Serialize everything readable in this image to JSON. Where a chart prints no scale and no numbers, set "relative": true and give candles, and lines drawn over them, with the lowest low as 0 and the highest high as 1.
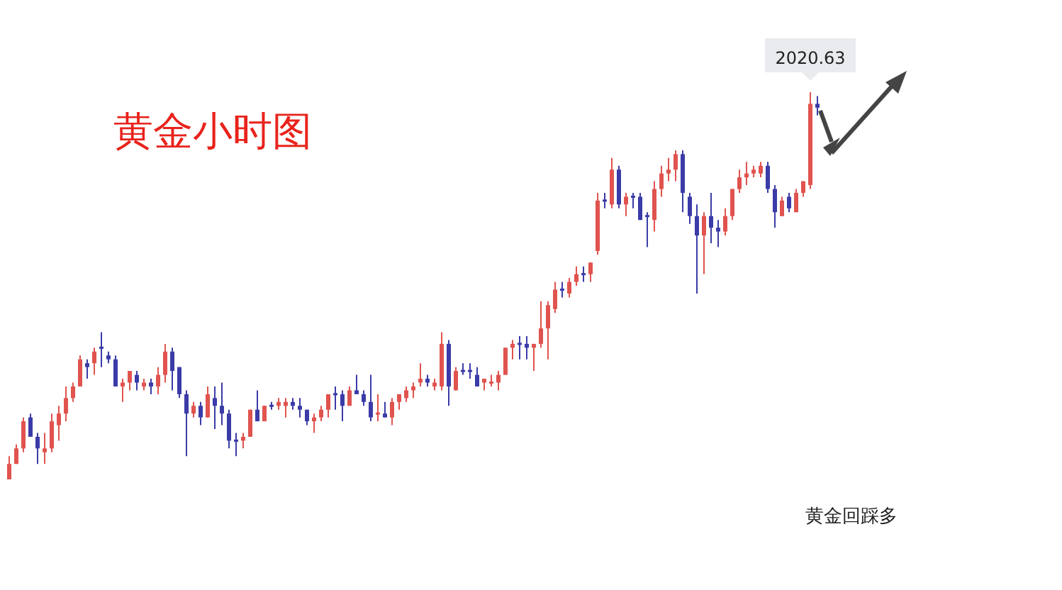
{
  "chart_data": {
    "type": "candlestick",
    "title": "黄金小时图",
    "relative": true,
    "annotations": [
      "2020.63",
      "黄金回踩多"
    ],
    "categories": [
      null,
      null,
      null,
      null,
      null,
      null,
      null,
      null,
      null,
      null,
      null,
      null,
      null,
      null,
      null,
      null,
      null,
      null,
      null,
      null,
      null,
      null,
      null,
      null,
      null,
      null,
      null,
      null,
      null,
      null,
      null,
      null,
      null,
      null,
      null,
      null,
      null,
      null,
      null,
      null,
      null,
      null,
      null,
      null,
      null,
      null,
      null,
      null,
      null,
      null,
      null,
      null,
      null,
      null,
      null,
      null,
      null,
      null,
      null,
      null,
      null,
      null,
      null,
      null,
      null,
      null,
      null,
      null,
      null,
      null,
      null,
      null,
      null,
      null,
      null,
      null,
      null,
      null,
      null,
      null,
      null,
      null,
      null,
      null,
      null,
      null,
      null,
      null,
      null,
      null,
      null,
      null,
      null,
      null,
      null,
      null,
      null,
      null,
      null,
      null,
      null,
      null,
      null,
      null,
      null,
      null,
      null,
      null,
      null,
      null,
      null,
      null,
      null,
      null,
      null
    ],
    "ohlc": [
      [
        0.0,
        0.06,
        0.0,
        0.04
      ],
      [
        0.04,
        0.09,
        0.04,
        0.08
      ],
      [
        0.08,
        0.16,
        0.07,
        0.15
      ],
      [
        0.16,
        0.17,
        0.11,
        0.11
      ],
      [
        0.11,
        0.12,
        0.04,
        0.08
      ],
      [
        0.07,
        0.12,
        0.04,
        0.08
      ],
      [
        0.08,
        0.17,
        0.07,
        0.15
      ],
      [
        0.14,
        0.19,
        0.1,
        0.17
      ],
      [
        0.17,
        0.24,
        0.15,
        0.21
      ],
      [
        0.21,
        0.25,
        0.2,
        0.24
      ],
      [
        0.24,
        0.32,
        0.24,
        0.31
      ],
      [
        0.3,
        0.31,
        0.26,
        0.29
      ],
      [
        0.3,
        0.34,
        0.27,
        0.33
      ],
      [
        0.34,
        0.38,
        0.29,
        0.34
      ],
      [
        0.32,
        0.33,
        0.3,
        0.31
      ],
      [
        0.31,
        0.32,
        0.24,
        0.24
      ],
      [
        0.24,
        0.26,
        0.2,
        0.25
      ],
      [
        0.25,
        0.28,
        0.23,
        0.28
      ],
      [
        0.27,
        0.28,
        0.23,
        0.25
      ],
      [
        0.24,
        0.26,
        0.23,
        0.25
      ],
      [
        0.25,
        0.26,
        0.22,
        0.24
      ],
      [
        0.24,
        0.29,
        0.22,
        0.27
      ],
      [
        0.27,
        0.35,
        0.25,
        0.33
      ],
      [
        0.33,
        0.34,
        0.23,
        0.28
      ],
      [
        0.29,
        0.29,
        0.21,
        0.22
      ],
      [
        0.22,
        0.23,
        0.06,
        0.17
      ],
      [
        0.17,
        0.2,
        0.16,
        0.19
      ],
      [
        0.19,
        0.2,
        0.14,
        0.16
      ],
      [
        0.16,
        0.24,
        0.16,
        0.22
      ],
      [
        0.21,
        0.24,
        0.13,
        0.19
      ],
      [
        0.19,
        0.25,
        0.14,
        0.17
      ],
      [
        0.17,
        0.18,
        0.08,
        0.1
      ],
      [
        0.1,
        0.12,
        0.06,
        0.1
      ],
      [
        0.1,
        0.12,
        0.08,
        0.11
      ],
      [
        0.11,
        0.18,
        0.11,
        0.18
      ],
      [
        0.18,
        0.23,
        0.15,
        0.15
      ],
      [
        0.15,
        0.19,
        0.15,
        0.19
      ],
      [
        0.19,
        0.2,
        0.18,
        0.19
      ],
      [
        0.19,
        0.21,
        0.18,
        0.2
      ],
      [
        0.19,
        0.21,
        0.16,
        0.2
      ],
      [
        0.2,
        0.21,
        0.18,
        0.19
      ],
      [
        0.19,
        0.21,
        0.16,
        0.18
      ],
      [
        0.18,
        0.18,
        0.14,
        0.15
      ],
      [
        0.15,
        0.17,
        0.12,
        0.16
      ],
      [
        0.16,
        0.19,
        0.15,
        0.18
      ],
      [
        0.18,
        0.22,
        0.16,
        0.22
      ],
      [
        0.22,
        0.24,
        0.18,
        0.22
      ],
      [
        0.22,
        0.23,
        0.15,
        0.19
      ],
      [
        0.19,
        0.24,
        0.19,
        0.23
      ],
      [
        0.23,
        0.27,
        0.22,
        0.22
      ],
      [
        0.22,
        0.23,
        0.19,
        0.2
      ],
      [
        0.2,
        0.27,
        0.15,
        0.16
      ],
      [
        0.17,
        0.22,
        0.15,
        0.17
      ],
      [
        0.17,
        0.2,
        0.16,
        0.16
      ],
      [
        0.16,
        0.21,
        0.14,
        0.2
      ],
      [
        0.2,
        0.22,
        0.18,
        0.22
      ],
      [
        0.21,
        0.24,
        0.2,
        0.23
      ],
      [
        0.23,
        0.25,
        0.21,
        0.24
      ],
      [
        0.25,
        0.3,
        0.24,
        0.26
      ],
      [
        0.26,
        0.27,
        0.24,
        0.25
      ],
      [
        0.24,
        0.26,
        0.23,
        0.25
      ],
      [
        0.24,
        0.38,
        0.23,
        0.35
      ],
      [
        0.35,
        0.36,
        0.19,
        0.24
      ],
      [
        0.23,
        0.29,
        0.23,
        0.28
      ],
      [
        0.28,
        0.3,
        0.27,
        0.28
      ],
      [
        0.28,
        0.3,
        0.26,
        0.28
      ],
      [
        0.27,
        0.29,
        0.24,
        0.24
      ],
      [
        0.25,
        0.26,
        0.23,
        0.26
      ],
      [
        0.25,
        0.27,
        0.24,
        0.25
      ],
      [
        0.25,
        0.28,
        0.23,
        0.27
      ],
      [
        0.27,
        0.34,
        0.27,
        0.34
      ],
      [
        0.34,
        0.36,
        0.31,
        0.35
      ],
      [
        0.35,
        0.37,
        0.31,
        0.35
      ],
      [
        0.35,
        0.37,
        0.31,
        0.34
      ],
      [
        0.34,
        0.35,
        0.28,
        0.35
      ],
      [
        0.35,
        0.46,
        0.34,
        0.39
      ],
      [
        0.39,
        0.46,
        0.31,
        0.45
      ],
      [
        0.44,
        0.51,
        0.43,
        0.49
      ],
      [
        0.49,
        0.51,
        0.47,
        0.49
      ],
      [
        0.48,
        0.52,
        0.47,
        0.51
      ],
      [
        0.51,
        0.55,
        0.5,
        0.53
      ],
      [
        0.53,
        0.55,
        0.51,
        0.53
      ],
      [
        0.53,
        0.56,
        0.51,
        0.56
      ],
      [
        0.59,
        0.74,
        0.58,
        0.72
      ],
      [
        0.72,
        0.74,
        0.7,
        0.72
      ],
      [
        0.71,
        0.83,
        0.7,
        0.8
      ],
      [
        0.8,
        0.81,
        0.7,
        0.71
      ],
      [
        0.71,
        0.74,
        0.68,
        0.73
      ],
      [
        0.73,
        0.74,
        0.7,
        0.73
      ],
      [
        0.73,
        0.74,
        0.67,
        0.67
      ],
      [
        0.68,
        0.69,
        0.6,
        0.68
      ],
      [
        0.67,
        0.77,
        0.64,
        0.75
      ],
      [
        0.75,
        0.81,
        0.73,
        0.79
      ],
      [
        0.79,
        0.83,
        0.77,
        0.8
      ],
      [
        0.8,
        0.85,
        0.77,
        0.84
      ],
      [
        0.84,
        0.85,
        0.69,
        0.74
      ],
      [
        0.73,
        0.74,
        0.66,
        0.68
      ],
      [
        0.68,
        0.71,
        0.48,
        0.63
      ],
      [
        0.63,
        0.69,
        0.53,
        0.68
      ],
      [
        0.68,
        0.74,
        0.61,
        0.65
      ],
      [
        0.65,
        0.67,
        0.6,
        0.64
      ],
      [
        0.64,
        0.7,
        0.63,
        0.68
      ],
      [
        0.68,
        0.75,
        0.67,
        0.75
      ],
      [
        0.75,
        0.8,
        0.74,
        0.78
      ],
      [
        0.78,
        0.82,
        0.76,
        0.79
      ],
      [
        0.79,
        0.81,
        0.78,
        0.8
      ],
      [
        0.79,
        0.82,
        0.78,
        0.81
      ],
      [
        0.81,
        0.82,
        0.74,
        0.75
      ],
      [
        0.75,
        0.76,
        0.65,
        0.69
      ],
      [
        0.68,
        0.73,
        0.68,
        0.72
      ],
      [
        0.73,
        0.74,
        0.69,
        0.7
      ],
      [
        0.69,
        0.75,
        0.69,
        0.74
      ],
      [
        0.74,
        0.77,
        0.73,
        0.77
      ],
      [
        0.76,
        1.0,
        0.75,
        0.97
      ],
      [
        0.97,
        0.99,
        0.94,
        0.96
      ]
    ],
    "colors": [
      "#e0534e",
      "#e0534e",
      "#e0534e",
      "#3b3ba8",
      "#3b3ba8",
      "#e0534e",
      "#e0534e",
      "#e0534e",
      "#e0534e",
      "#e0534e",
      "#e0534e",
      "#3b3ba8",
      "#e0534e",
      "#3b3ba8",
      "#3b3ba8",
      "#3b3ba8",
      "#e0534e",
      "#e0534e",
      "#3b3ba8",
      "#e0534e",
      "#3b3ba8",
      "#e0534e",
      "#e0534e",
      "#3b3ba8",
      "#3b3ba8",
      "#3b3ba8",
      "#e0534e",
      "#3b3ba8",
      "#e0534e",
      "#3b3ba8",
      "#3b3ba8",
      "#3b3ba8",
      "#3b3ba8",
      "#e0534e",
      "#e0534e",
      "#3b3ba8",
      "#e0534e",
      "#3b3ba8",
      "#e0534e",
      "#e0534e",
      "#3b3ba8",
      "#3b3ba8",
      "#3b3ba8",
      "#e0534e",
      "#e0534e",
      "#e0534e",
      "#3b3ba8",
      "#3b3ba8",
      "#e0534e",
      "#3b3ba8",
      "#3b3ba8",
      "#3b3ba8",
      "#e0534e",
      "#3b3ba8",
      "#e0534e",
      "#e0534e",
      "#e0534e",
      "#e0534e",
      "#e0534e",
      "#3b3ba8",
      "#e0534e",
      "#e0534e",
      "#3b3ba8",
      "#e0534e",
      "#3b3ba8",
      "#3b3ba8",
      "#3b3ba8",
      "#e0534e",
      "#e0534e",
      "#e0534e",
      "#e0534e",
      "#e0534e",
      "#3b3ba8",
      "#3b3ba8",
      "#e0534e",
      "#e0534e",
      "#e0534e",
      "#e0534e",
      "#3b3ba8",
      "#e0534e",
      "#e0534e",
      "#3b3ba8",
      "#e0534e",
      "#e0534e",
      "#3b3ba8",
      "#e0534e",
      "#3b3ba8",
      "#e0534e",
      "#3b3ba8",
      "#3b3ba8",
      "#3b3ba8",
      "#e0534e",
      "#e0534e",
      "#e0534e",
      "#e0534e",
      "#3b3ba8",
      "#3b3ba8",
      "#3b3ba8",
      "#e0534e",
      "#3b3ba8",
      "#3b3ba8",
      "#e0534e",
      "#e0534e",
      "#e0534e",
      "#e0534e",
      "#e0534e",
      "#e0534e",
      "#3b3ba8",
      "#3b3ba8",
      "#e0534e",
      "#3b3ba8",
      "#e0534e",
      "#e0534e",
      "#e0534e",
      "#3b3ba8"
    ]
  }
}
